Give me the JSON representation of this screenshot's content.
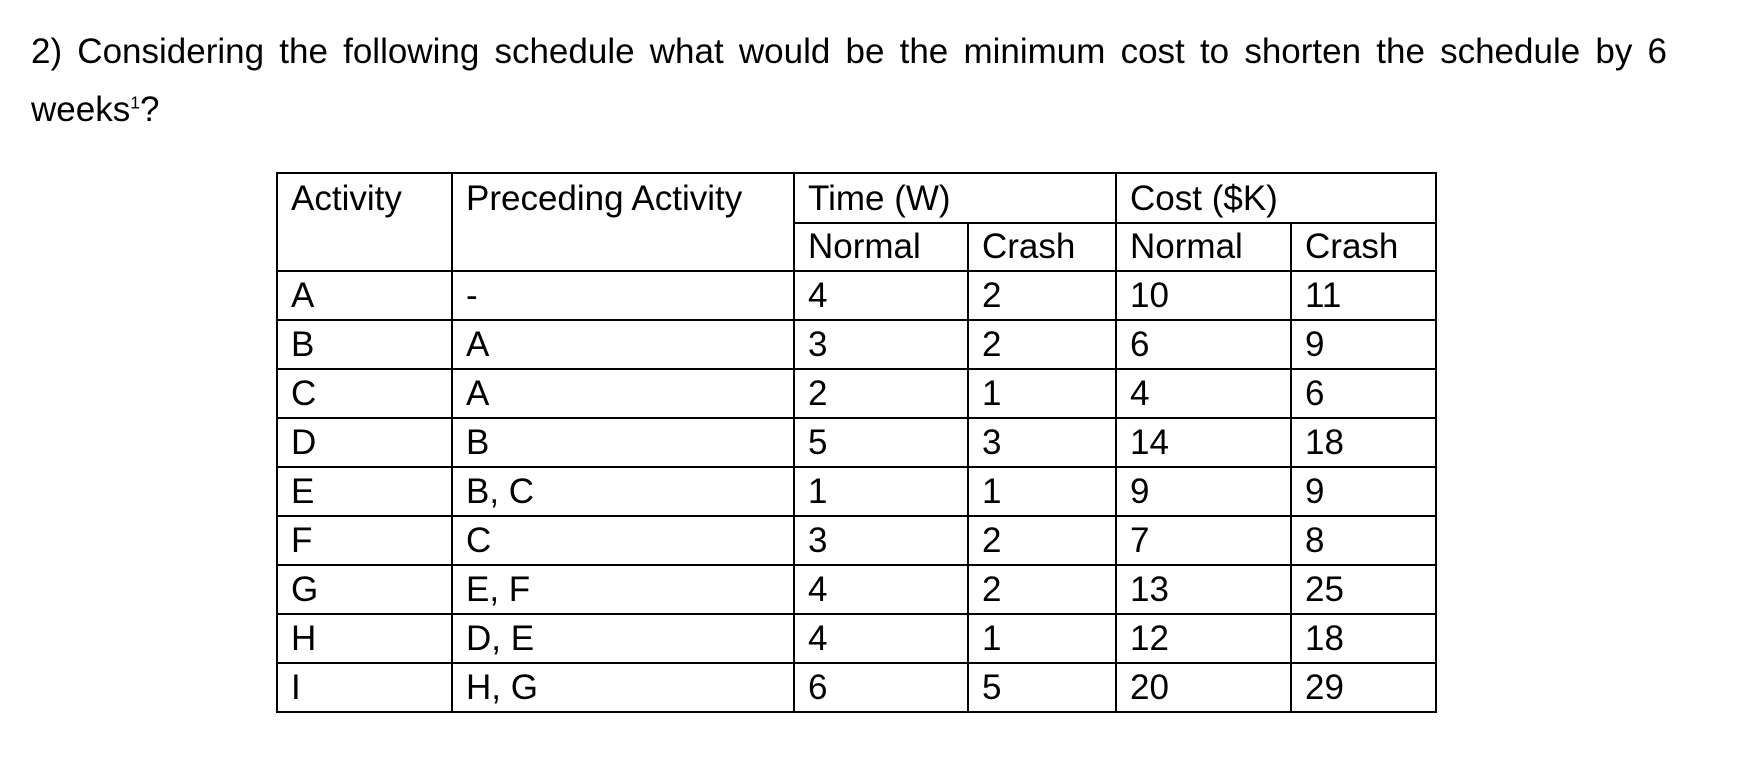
{
  "question": {
    "line1": "2) Considering the following schedule what would be the minimum cost to shorten the schedule by 6",
    "line2_word": "weeks",
    "line2_sup": "1",
    "line2_end": "?"
  },
  "table": {
    "headers": {
      "activity": "Activity",
      "preceding": "Preceding Activity",
      "time_group": "Time (W)",
      "cost_group": "Cost ($K)",
      "time_normal": "Normal",
      "time_crash": "Crash",
      "cost_normal": "Normal",
      "cost_crash": "Crash"
    },
    "rows": [
      {
        "activity": "A",
        "preceding": "-",
        "time_normal": "4",
        "time_crash": "2",
        "cost_normal": "10",
        "cost_crash": "11"
      },
      {
        "activity": "B",
        "preceding": "A",
        "time_normal": "3",
        "time_crash": "2",
        "cost_normal": "6",
        "cost_crash": "9"
      },
      {
        "activity": "C",
        "preceding": "A",
        "time_normal": "2",
        "time_crash": "1",
        "cost_normal": "4",
        "cost_crash": "6"
      },
      {
        "activity": "D",
        "preceding": "B",
        "time_normal": "5",
        "time_crash": "3",
        "cost_normal": "14",
        "cost_crash": "18"
      },
      {
        "activity": "E",
        "preceding": "B, C",
        "time_normal": "1",
        "time_crash": "1",
        "cost_normal": "9",
        "cost_crash": "9"
      },
      {
        "activity": "F",
        "preceding": "C",
        "time_normal": "3",
        "time_crash": "2",
        "cost_normal": "7",
        "cost_crash": "8"
      },
      {
        "activity": "G",
        "preceding": "E, F",
        "time_normal": "4",
        "time_crash": "2",
        "cost_normal": "13",
        "cost_crash": "25"
      },
      {
        "activity": "H",
        "preceding": "D, E",
        "time_normal": "4",
        "time_crash": "1",
        "cost_normal": "12",
        "cost_crash": "18"
      },
      {
        "activity": "I",
        "preceding": "H, G",
        "time_normal": "6",
        "time_crash": "5",
        "cost_normal": "20",
        "cost_crash": "29"
      }
    ]
  },
  "colors": {
    "background": "#ffffff",
    "text": "#000000",
    "table_border": "#000000"
  }
}
